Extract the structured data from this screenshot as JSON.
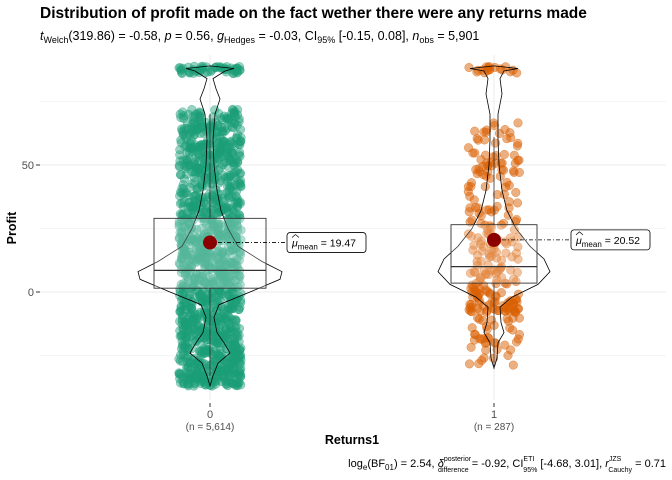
{
  "chart_data": {
    "type": "violin-box-scatter",
    "title": "Distribution of profit made on the fact wether there were any returns made",
    "subtitle": {
      "welch": "t",
      "welch_sub": "Welch",
      "welch_val": "(319.86) = -0.58, ",
      "p": "p",
      "p_val": " = 0.56, ",
      "g": "g",
      "g_sub": "Hedges",
      "g_val": " = -0.03, CI",
      "ci_sub": "95%",
      "ci_val": " [-0.15, 0.08], ",
      "n": "n",
      "n_sub": "obs",
      "n_val": " = 5,901"
    },
    "xlabel": "Returns1",
    "ylabel": "Profit",
    "ylim": [
      -38,
      90
    ],
    "yticks": [
      0,
      50
    ],
    "grid": true,
    "groups": [
      {
        "label": "0",
        "n_label": "(n = 5,614)",
        "color": "#1b9e77",
        "mean": 19.47,
        "mean_label_prefix": "μ",
        "mean_label_sub": "mean",
        "mean_label_value": " = 19.47",
        "box": {
          "q1": 1.5,
          "median": 8.5,
          "q3": 29,
          "whisker_low": -33,
          "whisker_high": 70
        },
        "points_range": [
          -37,
          88
        ],
        "n_points": 5614
      },
      {
        "label": "1",
        "n_label": "(n = 287)",
        "color": "#d95f02",
        "mean": 20.52,
        "mean_label_prefix": "μ",
        "mean_label_sub": "mean",
        "mean_label_value": " = 20.52",
        "box": {
          "q1": 3.5,
          "median": 10,
          "q3": 26.5,
          "whisker_low": -30,
          "whisker_high": 61
        },
        "points_range": [
          -30,
          88
        ],
        "n_points": 287
      }
    ],
    "mean_color": "#8b0000",
    "caption": {
      "bf": "log",
      "bf_sub": "e",
      "bf_val": "(BF",
      "bf_sub2": "01",
      "bf_val2": ") = 2.54, ",
      "delta": "δ",
      "delta_sup": "posterior",
      "delta_sub": "difference",
      "delta_val": " = -0.92, CI",
      "ci_sup": "ETI",
      "ci_sub": "95%",
      "ci_val": " [-4.68, 3.01], ",
      "r": "r",
      "r_sup": "JZS",
      "r_sub": "Cauchy",
      "r_val": " = 0.71"
    }
  }
}
